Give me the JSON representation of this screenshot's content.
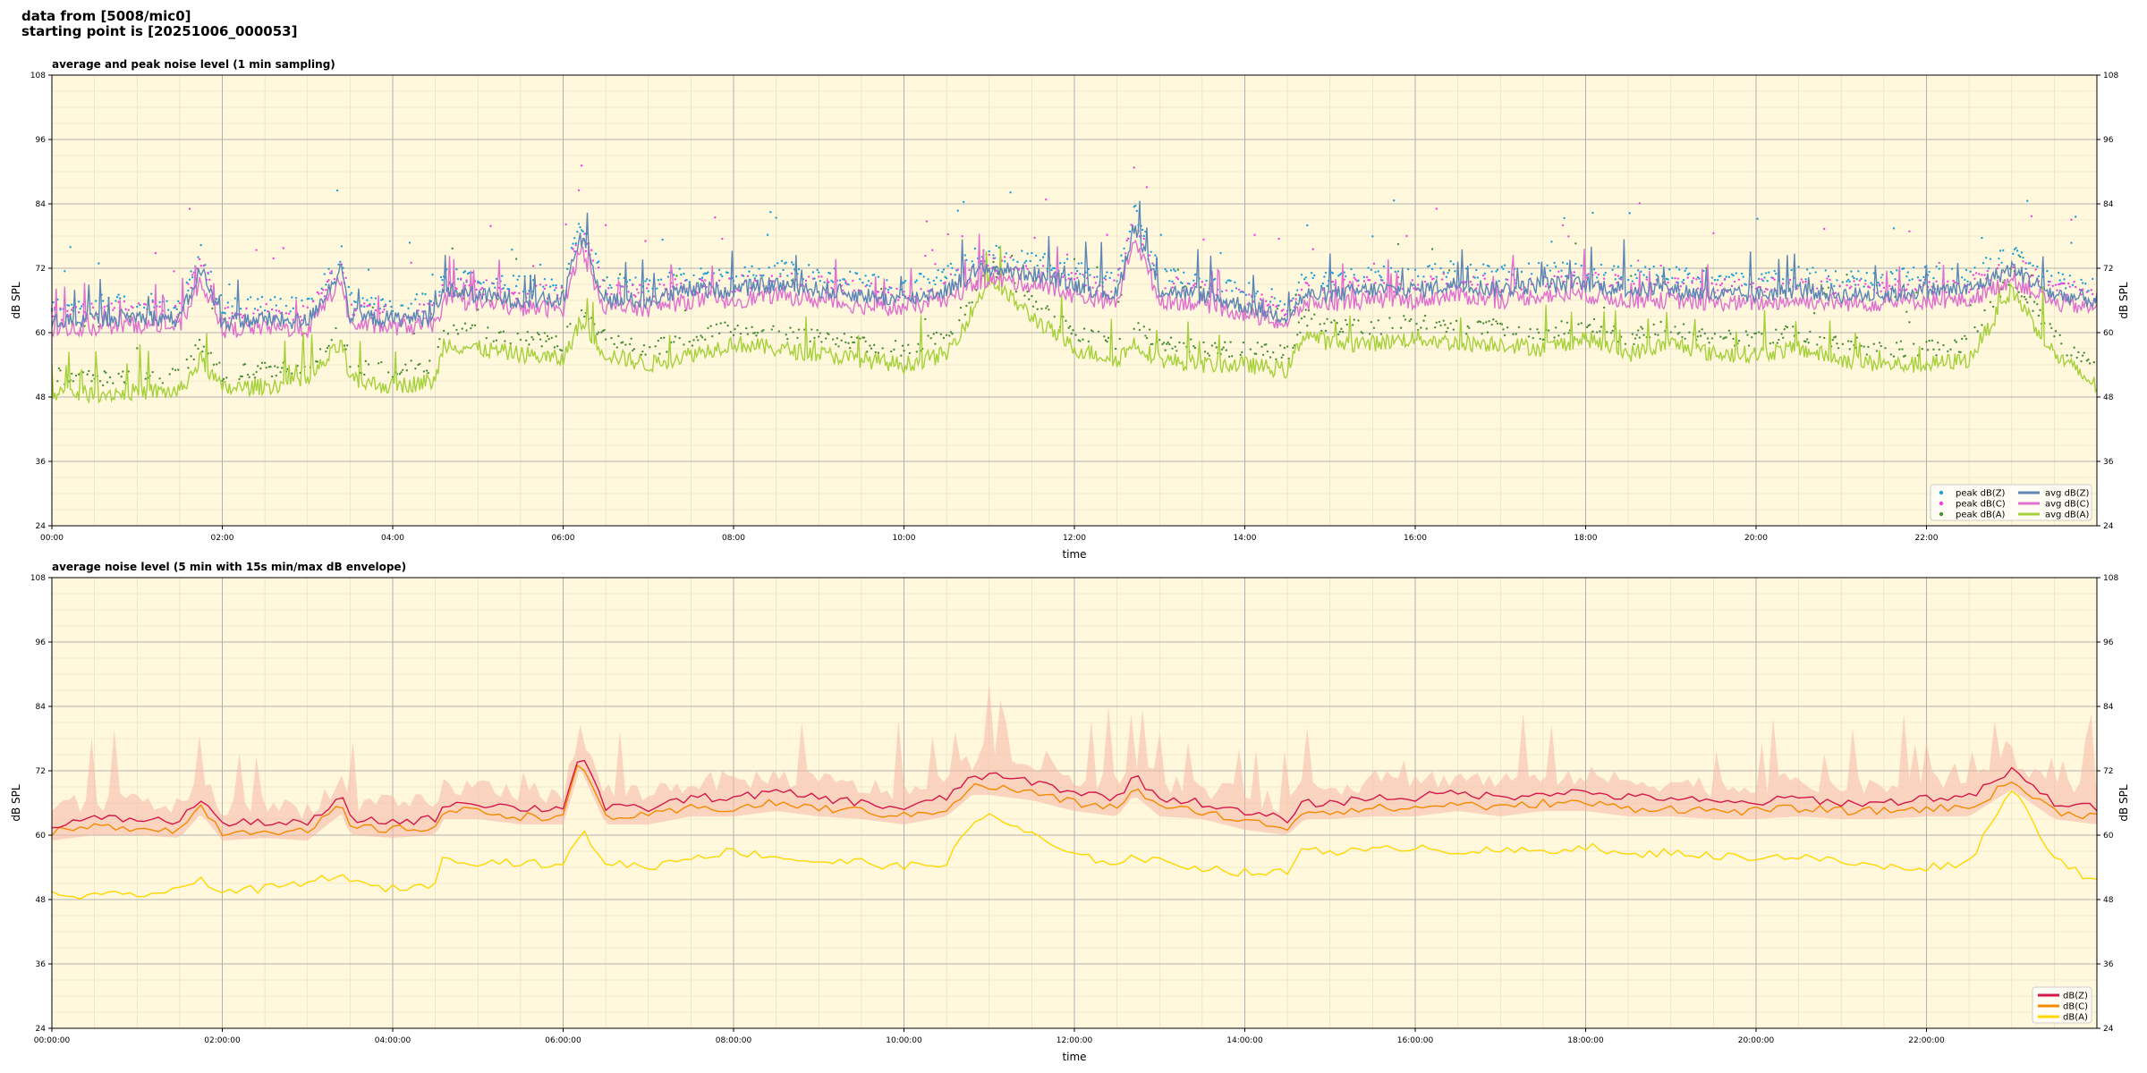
{
  "header": {
    "line1": "data from [5008/mic0]",
    "line2": "starting point is [20251006_000053]"
  },
  "colors": {
    "background": "#fff8dc",
    "peak_z": "#1f9fd8",
    "peak_c": "#ee44dd",
    "peak_a": "#4a8f3a",
    "avg_z": "#5b86b6",
    "avg_c": "#e070cf",
    "avg_a": "#a6d13c",
    "db_z": "#d6174a",
    "db_c": "#f58a00",
    "db_a": "#ffd700",
    "envelope": "#f5b7a8"
  },
  "chart_data": [
    {
      "type": "line",
      "title": "average and peak noise level (1 min sampling)",
      "xlabel": "time",
      "ylabel": "dB SPL",
      "ylabel_right": "dB SPL",
      "xlim": [
        0,
        24
      ],
      "ylim": [
        24,
        108
      ],
      "yticks": [
        "24",
        "36",
        "48",
        "60",
        "72",
        "84",
        "96",
        "108"
      ],
      "xticks": [
        "00:00",
        "02:00",
        "04:00",
        "06:00",
        "08:00",
        "10:00",
        "12:00",
        "14:00",
        "16:00",
        "18:00",
        "20:00",
        "22:00"
      ],
      "grid": true,
      "legend_position": "bottom-right",
      "legend": [
        "peak dB(Z)",
        "peak dB(C)",
        "peak dB(A)",
        "avg dB(Z)",
        "avg dB(C)",
        "avg dB(A)"
      ],
      "series": [
        {
          "name": "avg dB(Z)",
          "x": [
            0,
            0.5,
            1,
            1.5,
            1.75,
            2,
            2.5,
            3,
            3.4,
            3.5,
            4,
            4.5,
            4.6,
            5,
            5.5,
            6,
            6.2,
            6.5,
            7,
            7.5,
            8,
            8.5,
            9,
            9.5,
            10,
            10.5,
            10.8,
            11,
            11.5,
            12,
            12.5,
            12.7,
            13,
            13.5,
            14,
            14.5,
            14.7,
            15,
            15.5,
            16,
            16.5,
            17,
            17.5,
            18,
            18.5,
            19,
            19.5,
            20,
            20.5,
            21,
            21.5,
            22,
            22.5,
            23,
            23.5,
            24
          ],
          "y": [
            62,
            62.5,
            63,
            62.5,
            72,
            62,
            62.5,
            62,
            72,
            63,
            62.5,
            63,
            68,
            67,
            66,
            66,
            78,
            66,
            66,
            68,
            68,
            69,
            68,
            67,
            66,
            68,
            71,
            72,
            71,
            69,
            67,
            80,
            68,
            67,
            65,
            63,
            67,
            67,
            68,
            68,
            69,
            68,
            69,
            69,
            68,
            68,
            67,
            67,
            68,
            67,
            67,
            68,
            68,
            72,
            67,
            66
          ]
        },
        {
          "name": "avg dB(C)",
          "x": [
            0,
            0.5,
            1,
            1.5,
            1.75,
            2,
            2.5,
            3,
            3.4,
            3.5,
            4,
            4.5,
            4.6,
            5,
            5.5,
            6,
            6.2,
            6.5,
            7,
            7.5,
            8,
            8.5,
            9,
            9.5,
            10,
            10.5,
            10.8,
            11,
            11.5,
            12,
            12.5,
            12.7,
            13,
            13.5,
            14,
            14.5,
            14.7,
            15,
            15.5,
            16,
            16.5,
            17,
            17.5,
            18,
            18.5,
            19,
            19.5,
            20,
            20.5,
            21,
            21.5,
            22,
            22.5,
            23,
            23.5,
            24
          ],
          "y": [
            60.5,
            61,
            61.5,
            61,
            70,
            60.5,
            61,
            60.5,
            70,
            61.5,
            61,
            61.5,
            66,
            65.5,
            64.5,
            64.5,
            76,
            64.5,
            64.5,
            66,
            66,
            67,
            66,
            65,
            64.5,
            66,
            69,
            70,
            69,
            67,
            65.5,
            78,
            66,
            65.5,
            63.5,
            61.5,
            65.5,
            65.5,
            66,
            66,
            67,
            66,
            67,
            67,
            66,
            66,
            65.5,
            65.5,
            66,
            65.5,
            65.5,
            66,
            66,
            70,
            65.5,
            64.5
          ]
        },
        {
          "name": "avg dB(A)",
          "x": [
            0,
            0.5,
            1,
            1.5,
            1.75,
            2,
            2.5,
            3,
            3.4,
            3.5,
            4,
            4.5,
            4.6,
            5,
            5.5,
            6,
            6.2,
            6.5,
            7,
            7.5,
            8,
            8.5,
            9,
            9.5,
            10,
            10.5,
            10.8,
            11,
            11.5,
            12,
            12.5,
            12.7,
            13,
            13.5,
            14,
            14.5,
            14.7,
            15,
            15.5,
            16,
            16.5,
            17,
            17.5,
            18,
            18.5,
            19,
            19.5,
            20,
            20.5,
            21,
            21.5,
            22,
            22.5,
            23,
            23.5,
            24
          ],
          "y": [
            49,
            48.5,
            49,
            49,
            55,
            49.5,
            50,
            51,
            58,
            51,
            50,
            51,
            58,
            57,
            56,
            55,
            62,
            56,
            54,
            56,
            58,
            57,
            56,
            55,
            54,
            56,
            64,
            70,
            63,
            57,
            55,
            58,
            55,
            54,
            54,
            53,
            60,
            58,
            58,
            59,
            58,
            58,
            57,
            59,
            56,
            58,
            56,
            56,
            57,
            55,
            54,
            54,
            55,
            68,
            56,
            50
          ]
        }
      ]
    },
    {
      "type": "line",
      "title": "average noise level (5 min with 15s min/max dB envelope)",
      "xlabel": "time",
      "ylabel": "dB SPL",
      "ylabel_right": "dB SPL",
      "xlim": [
        0,
        24
      ],
      "ylim": [
        24,
        108
      ],
      "yticks": [
        "24",
        "36",
        "48",
        "60",
        "72",
        "84",
        "96",
        "108"
      ],
      "xticks": [
        "00:00:00",
        "02:00:00",
        "04:00:00",
        "06:00:00",
        "08:00:00",
        "10:00:00",
        "12:00:00",
        "14:00:00",
        "16:00:00",
        "18:00:00",
        "20:00:00",
        "22:00:00"
      ],
      "grid": true,
      "legend_position": "bottom-right",
      "legend": [
        "dB(Z)",
        "dB(C)",
        "dB(A)"
      ],
      "series": [
        {
          "name": "dB(Z)",
          "x": [
            0,
            0.5,
            1,
            1.5,
            1.75,
            2,
            2.5,
            3,
            3.4,
            3.5,
            4,
            4.5,
            4.6,
            5,
            5.5,
            6,
            6.2,
            6.5,
            7,
            7.5,
            8,
            8.5,
            9,
            9.5,
            10,
            10.5,
            10.8,
            11,
            11.5,
            12,
            12.5,
            12.7,
            13,
            13.5,
            14,
            14.5,
            14.7,
            15,
            15.5,
            16,
            16.5,
            17,
            17.5,
            18,
            18.5,
            19,
            19.5,
            20,
            20.5,
            21,
            21.5,
            22,
            22.5,
            23,
            23.5,
            24
          ],
          "y": [
            62,
            63,
            63,
            62.5,
            67,
            62,
            62.5,
            62,
            67,
            63,
            62.5,
            63,
            66,
            66,
            65,
            65,
            76,
            65,
            65,
            67,
            67,
            68,
            67,
            66,
            65,
            67,
            71,
            71,
            70,
            68,
            67,
            71,
            67,
            66,
            64,
            63,
            66,
            66,
            67,
            67,
            68,
            67,
            68,
            68,
            67,
            67,
            66,
            66,
            67,
            66,
            66,
            67,
            67,
            72,
            66,
            65
          ]
        },
        {
          "name": "dB(C)",
          "x": [
            0,
            0.5,
            1,
            1.5,
            1.75,
            2,
            2.5,
            3,
            3.4,
            3.5,
            4,
            4.5,
            4.6,
            5,
            5.5,
            6,
            6.2,
            6.5,
            7,
            7.5,
            8,
            8.5,
            9,
            9.5,
            10,
            10.5,
            10.8,
            11,
            11.5,
            12,
            12.5,
            12.7,
            13,
            13.5,
            14,
            14.5,
            14.7,
            15,
            15.5,
            16,
            16.5,
            17,
            17.5,
            18,
            18.5,
            19,
            19.5,
            20,
            20.5,
            21,
            21.5,
            22,
            22.5,
            23,
            23.5,
            24
          ],
          "y": [
            60.5,
            61.5,
            61.5,
            61,
            65.5,
            60.5,
            61,
            60.5,
            65.5,
            61.5,
            61,
            61.5,
            64.5,
            64.5,
            63.5,
            63.5,
            74,
            63.5,
            63.5,
            65,
            65,
            66,
            65,
            64.5,
            63.5,
            65,
            69,
            69,
            68,
            66,
            65,
            69,
            65,
            64.5,
            62.5,
            61.5,
            64.5,
            64.5,
            65,
            65,
            66,
            65,
            66,
            66,
            65,
            65,
            64.5,
            64.5,
            65,
            64.5,
            64.5,
            65,
            65,
            70,
            64.5,
            63.5
          ]
        },
        {
          "name": "dB(A)",
          "x": [
            0,
            0.5,
            1,
            1.5,
            1.75,
            2,
            2.5,
            3,
            3.4,
            3.5,
            4,
            4.5,
            4.6,
            5,
            5.5,
            6,
            6.2,
            6.5,
            7,
            7.5,
            8,
            8.5,
            9,
            9.5,
            10,
            10.5,
            10.8,
            11,
            11.5,
            12,
            12.5,
            12.7,
            13,
            13.5,
            14,
            14.5,
            14.7,
            15,
            15.5,
            16,
            16.5,
            17,
            17.5,
            18,
            18.5,
            19,
            19.5,
            20,
            20.5,
            21,
            21.5,
            22,
            22.5,
            23,
            23.5,
            24
          ],
          "y": [
            49,
            48.5,
            49,
            49.5,
            52,
            49.5,
            50,
            51,
            53,
            51,
            50,
            51,
            56,
            55,
            55,
            54,
            61,
            55,
            54,
            56,
            57,
            56,
            55,
            55,
            54,
            55,
            62,
            64,
            60,
            56,
            55,
            56,
            55,
            54,
            53,
            53,
            58,
            57,
            57,
            58,
            57,
            57,
            57,
            58,
            56,
            57,
            56,
            56,
            56,
            55,
            54,
            54,
            55,
            69,
            56,
            51
          ]
        }
      ]
    }
  ]
}
